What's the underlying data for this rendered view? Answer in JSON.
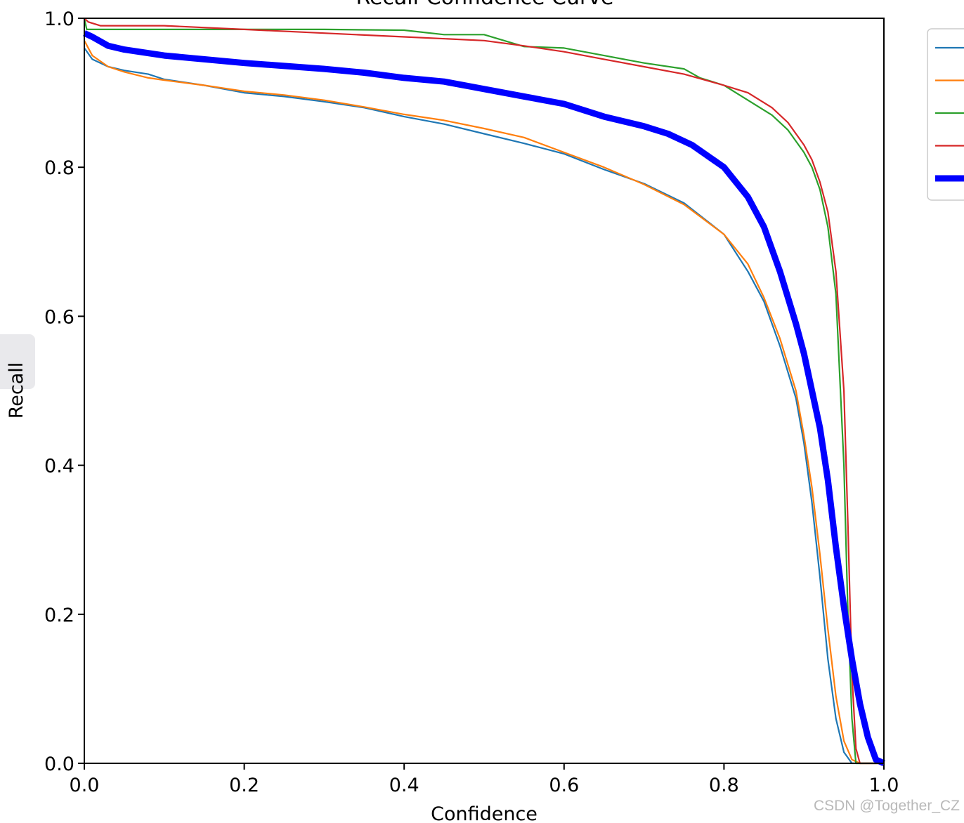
{
  "chart_data": {
    "type": "line",
    "title": "Recall-Confidence Curve",
    "xlabel": "Confidence",
    "ylabel": "Recall",
    "xlim": [
      0,
      1
    ],
    "ylim": [
      0,
      1
    ],
    "xticks": [
      "0.0",
      "0.2",
      "0.4",
      "0.6",
      "0.8",
      "1.0"
    ],
    "yticks": [
      "0.0",
      "0.2",
      "0.4",
      "0.6",
      "0.8",
      "1.0"
    ],
    "grid": false,
    "legend": "right, partially cropped",
    "series": [
      {
        "color": "#1f77b4",
        "width": "thin",
        "points": [
          [
            0.0,
            0.96
          ],
          [
            0.01,
            0.945
          ],
          [
            0.03,
            0.935
          ],
          [
            0.05,
            0.93
          ],
          [
            0.08,
            0.925
          ],
          [
            0.1,
            0.918
          ],
          [
            0.15,
            0.91
          ],
          [
            0.2,
            0.9
          ],
          [
            0.25,
            0.895
          ],
          [
            0.3,
            0.888
          ],
          [
            0.35,
            0.88
          ],
          [
            0.4,
            0.868
          ],
          [
            0.45,
            0.858
          ],
          [
            0.5,
            0.845
          ],
          [
            0.55,
            0.832
          ],
          [
            0.6,
            0.818
          ],
          [
            0.65,
            0.797
          ],
          [
            0.7,
            0.778
          ],
          [
            0.75,
            0.752
          ],
          [
            0.8,
            0.71
          ],
          [
            0.83,
            0.66
          ],
          [
            0.85,
            0.62
          ],
          [
            0.87,
            0.56
          ],
          [
            0.89,
            0.49
          ],
          [
            0.9,
            0.43
          ],
          [
            0.91,
            0.35
          ],
          [
            0.92,
            0.25
          ],
          [
            0.93,
            0.14
          ],
          [
            0.94,
            0.06
          ],
          [
            0.95,
            0.015
          ],
          [
            0.96,
            0.0
          ],
          [
            1.0,
            0.0
          ]
        ]
      },
      {
        "color": "#ff7f0e",
        "width": "thin",
        "points": [
          [
            0.0,
            0.97
          ],
          [
            0.01,
            0.95
          ],
          [
            0.03,
            0.935
          ],
          [
            0.05,
            0.928
          ],
          [
            0.08,
            0.92
          ],
          [
            0.1,
            0.917
          ],
          [
            0.15,
            0.91
          ],
          [
            0.2,
            0.902
          ],
          [
            0.25,
            0.897
          ],
          [
            0.3,
            0.89
          ],
          [
            0.35,
            0.881
          ],
          [
            0.4,
            0.871
          ],
          [
            0.45,
            0.863
          ],
          [
            0.5,
            0.852
          ],
          [
            0.55,
            0.84
          ],
          [
            0.6,
            0.82
          ],
          [
            0.65,
            0.8
          ],
          [
            0.7,
            0.777
          ],
          [
            0.75,
            0.75
          ],
          [
            0.8,
            0.71
          ],
          [
            0.83,
            0.67
          ],
          [
            0.85,
            0.625
          ],
          [
            0.87,
            0.57
          ],
          [
            0.89,
            0.5
          ],
          [
            0.9,
            0.44
          ],
          [
            0.91,
            0.37
          ],
          [
            0.92,
            0.28
          ],
          [
            0.93,
            0.18
          ],
          [
            0.94,
            0.09
          ],
          [
            0.95,
            0.03
          ],
          [
            0.96,
            0.005
          ],
          [
            0.97,
            0.0
          ],
          [
            1.0,
            0.0
          ]
        ]
      },
      {
        "color": "#2ca02c",
        "width": "thin",
        "points": [
          [
            0.0,
            1.0
          ],
          [
            0.003,
            0.985
          ],
          [
            0.05,
            0.985
          ],
          [
            0.1,
            0.985
          ],
          [
            0.2,
            0.985
          ],
          [
            0.3,
            0.985
          ],
          [
            0.4,
            0.984
          ],
          [
            0.45,
            0.978
          ],
          [
            0.5,
            0.978
          ],
          [
            0.55,
            0.962
          ],
          [
            0.6,
            0.96
          ],
          [
            0.65,
            0.95
          ],
          [
            0.7,
            0.94
          ],
          [
            0.75,
            0.932
          ],
          [
            0.77,
            0.92
          ],
          [
            0.8,
            0.91
          ],
          [
            0.83,
            0.89
          ],
          [
            0.86,
            0.87
          ],
          [
            0.88,
            0.85
          ],
          [
            0.9,
            0.82
          ],
          [
            0.91,
            0.8
          ],
          [
            0.92,
            0.77
          ],
          [
            0.93,
            0.72
          ],
          [
            0.94,
            0.63
          ],
          [
            0.95,
            0.4
          ],
          [
            0.955,
            0.2
          ],
          [
            0.96,
            0.06
          ],
          [
            0.965,
            0.0
          ],
          [
            1.0,
            0.0
          ]
        ]
      },
      {
        "color": "#d62728",
        "width": "thin",
        "points": [
          [
            0.0,
            1.0
          ],
          [
            0.005,
            0.995
          ],
          [
            0.02,
            0.99
          ],
          [
            0.1,
            0.99
          ],
          [
            0.2,
            0.985
          ],
          [
            0.3,
            0.98
          ],
          [
            0.4,
            0.975
          ],
          [
            0.5,
            0.97
          ],
          [
            0.55,
            0.963
          ],
          [
            0.6,
            0.955
          ],
          [
            0.65,
            0.945
          ],
          [
            0.7,
            0.935
          ],
          [
            0.75,
            0.925
          ],
          [
            0.8,
            0.91
          ],
          [
            0.83,
            0.9
          ],
          [
            0.86,
            0.88
          ],
          [
            0.88,
            0.86
          ],
          [
            0.9,
            0.83
          ],
          [
            0.91,
            0.81
          ],
          [
            0.92,
            0.78
          ],
          [
            0.93,
            0.74
          ],
          [
            0.94,
            0.66
          ],
          [
            0.95,
            0.5
          ],
          [
            0.955,
            0.32
          ],
          [
            0.96,
            0.12
          ],
          [
            0.965,
            0.02
          ],
          [
            0.97,
            0.0
          ],
          [
            1.0,
            0.0
          ]
        ]
      },
      {
        "color": "#0000ff",
        "width": "thick",
        "points": [
          [
            0.0,
            0.98
          ],
          [
            0.01,
            0.975
          ],
          [
            0.03,
            0.963
          ],
          [
            0.05,
            0.958
          ],
          [
            0.1,
            0.95
          ],
          [
            0.2,
            0.94
          ],
          [
            0.3,
            0.932
          ],
          [
            0.35,
            0.927
          ],
          [
            0.4,
            0.92
          ],
          [
            0.45,
            0.915
          ],
          [
            0.5,
            0.905
          ],
          [
            0.55,
            0.895
          ],
          [
            0.6,
            0.885
          ],
          [
            0.65,
            0.868
          ],
          [
            0.7,
            0.855
          ],
          [
            0.73,
            0.845
          ],
          [
            0.76,
            0.83
          ],
          [
            0.8,
            0.8
          ],
          [
            0.83,
            0.76
          ],
          [
            0.85,
            0.72
          ],
          [
            0.87,
            0.66
          ],
          [
            0.89,
            0.59
          ],
          [
            0.9,
            0.55
          ],
          [
            0.91,
            0.5
          ],
          [
            0.92,
            0.45
          ],
          [
            0.93,
            0.38
          ],
          [
            0.94,
            0.29
          ],
          [
            0.95,
            0.21
          ],
          [
            0.96,
            0.14
          ],
          [
            0.97,
            0.08
          ],
          [
            0.98,
            0.035
          ],
          [
            0.99,
            0.005
          ],
          [
            1.0,
            0.0
          ]
        ]
      }
    ]
  },
  "watermark": "CSDN @Together_CZ"
}
